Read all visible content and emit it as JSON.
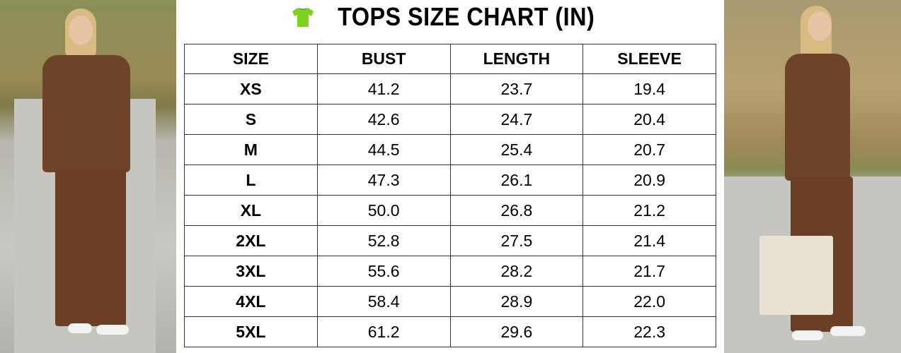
{
  "title": {
    "icon": "t-shirt-icon",
    "icon_color": "#7ed321",
    "text": "TOPS SIZE CHART (IN)"
  },
  "table": {
    "headers": [
      "SIZE",
      "BUST",
      "LENGTH",
      "SLEEVE"
    ],
    "rows": [
      [
        "XS",
        "41.2",
        "23.7",
        "19.4"
      ],
      [
        "S",
        "42.6",
        "24.7",
        "20.4"
      ],
      [
        "M",
        "44.5",
        "25.4",
        "20.7"
      ],
      [
        "L",
        "47.3",
        "26.1",
        "20.9"
      ],
      [
        "XL",
        "50.0",
        "26.8",
        "21.2"
      ],
      [
        "2XL",
        "52.8",
        "27.5",
        "21.4"
      ],
      [
        "3XL",
        "55.6",
        "28.2",
        "21.7"
      ],
      [
        "4XL",
        "58.4",
        "28.9",
        "22.0"
      ],
      [
        "5XL",
        "61.2",
        "29.6",
        "22.3"
      ]
    ]
  },
  "colors": {
    "garment": "#6e4428",
    "border": "#333333"
  }
}
